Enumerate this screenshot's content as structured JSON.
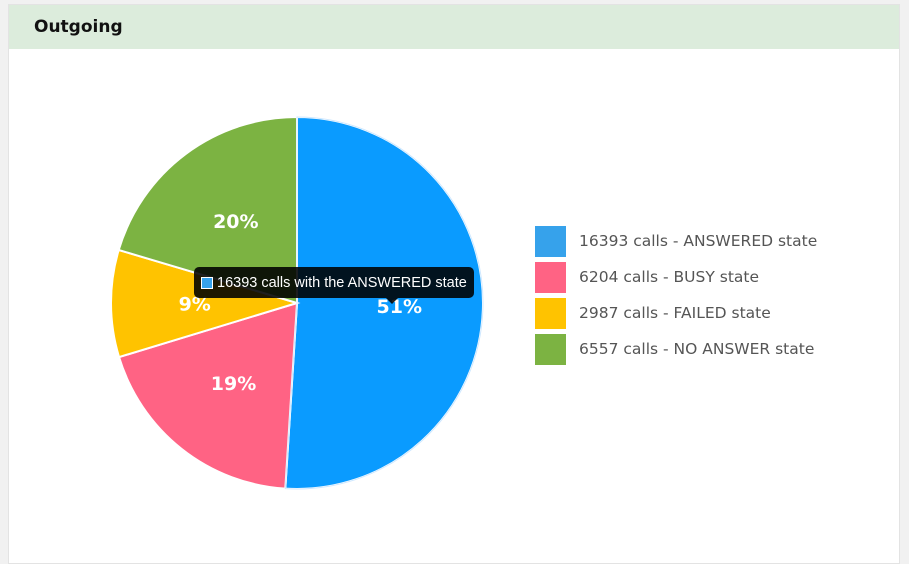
{
  "header": {
    "title": "Outgoing"
  },
  "chart_data": {
    "type": "pie",
    "categories": [
      "ANSWERED",
      "BUSY",
      "FAILED",
      "NO ANSWER"
    ],
    "values": [
      16393,
      6204,
      2987,
      6557
    ],
    "percent_labels": [
      "51%",
      "19%",
      "9%",
      "20%"
    ],
    "colors": [
      "#0a9bff",
      "#ff6384",
      "#ffc300",
      "#7cb342"
    ],
    "legend_position": "right",
    "legend": [
      {
        "label": "16393 calls - ANSWERED state",
        "color": "#36a2eb"
      },
      {
        "label": "6204 calls - BUSY state",
        "color": "#ff6384"
      },
      {
        "label": "2987 calls - FAILED state",
        "color": "#ffc300"
      },
      {
        "label": "6557 calls - NO ANSWER state",
        "color": "#7cb342"
      }
    ]
  },
  "tooltip": {
    "text": "16393 calls with the ANSWERED state",
    "swatch_color": "#36a2eb"
  }
}
